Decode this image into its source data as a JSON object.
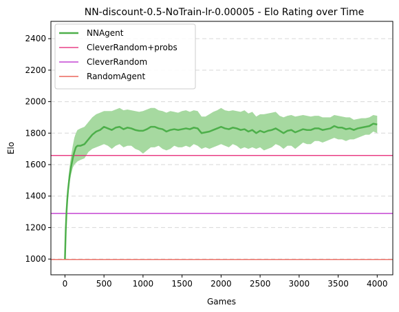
{
  "chart_data": {
    "type": "line",
    "title": "NN-discount-0.5-NoTrain-lr-0.00005 - Elo Rating over Time",
    "xlabel": "Games",
    "ylabel": "Elo",
    "xlim": [
      -180,
      4200
    ],
    "ylim": [
      900,
      2510
    ],
    "xticks": [
      0,
      500,
      1000,
      1500,
      2000,
      2500,
      3000,
      3500,
      4000
    ],
    "yticks": [
      1000,
      1200,
      1400,
      1600,
      1800,
      2000,
      2200,
      2400
    ],
    "grid": "y-dashed",
    "legend_position": "top-left",
    "series": [
      {
        "name": "NNAgent",
        "kind": "line-with-band",
        "color": "#4daf4a",
        "band_color": "#a6d9a0",
        "x": [
          0,
          10,
          20,
          30,
          40,
          60,
          80,
          100,
          120,
          140,
          160,
          200,
          250,
          300,
          350,
          400,
          450,
          500,
          550,
          600,
          650,
          700,
          750,
          800,
          850,
          900,
          950,
          1000,
          1050,
          1100,
          1150,
          1200,
          1250,
          1300,
          1350,
          1400,
          1450,
          1500,
          1550,
          1600,
          1650,
          1700,
          1750,
          1800,
          1850,
          1900,
          1950,
          2000,
          2050,
          2100,
          2150,
          2200,
          2250,
          2300,
          2350,
          2400,
          2450,
          2500,
          2550,
          2600,
          2650,
          2700,
          2750,
          2800,
          2850,
          2900,
          2950,
          3000,
          3050,
          3100,
          3150,
          3200,
          3250,
          3300,
          3350,
          3400,
          3450,
          3500,
          3550,
          3600,
          3650,
          3700,
          3750,
          3800,
          3850,
          3900,
          3950,
          4000
        ],
        "values": [
          1000,
          1180,
          1300,
          1380,
          1440,
          1530,
          1590,
          1640,
          1680,
          1710,
          1720,
          1720,
          1730,
          1760,
          1790,
          1810,
          1820,
          1840,
          1830,
          1820,
          1835,
          1840,
          1825,
          1835,
          1830,
          1820,
          1815,
          1815,
          1825,
          1840,
          1840,
          1830,
          1825,
          1810,
          1820,
          1825,
          1820,
          1825,
          1830,
          1825,
          1835,
          1830,
          1800,
          1805,
          1810,
          1820,
          1830,
          1840,
          1830,
          1825,
          1835,
          1830,
          1820,
          1825,
          1810,
          1820,
          1800,
          1815,
          1805,
          1815,
          1820,
          1830,
          1815,
          1800,
          1815,
          1820,
          1805,
          1815,
          1825,
          1820,
          1820,
          1830,
          1830,
          1820,
          1825,
          1830,
          1845,
          1835,
          1835,
          1825,
          1830,
          1820,
          1830,
          1835,
          1840,
          1845,
          1860,
          1855
        ],
        "lower": [
          1000,
          1170,
          1280,
          1360,
          1410,
          1490,
          1540,
          1580,
          1600,
          1610,
          1620,
          1630,
          1640,
          1680,
          1700,
          1710,
          1720,
          1730,
          1720,
          1700,
          1720,
          1730,
          1710,
          1720,
          1720,
          1700,
          1690,
          1670,
          1690,
          1710,
          1710,
          1720,
          1700,
          1690,
          1700,
          1720,
          1710,
          1710,
          1720,
          1710,
          1730,
          1720,
          1700,
          1710,
          1700,
          1710,
          1720,
          1730,
          1720,
          1710,
          1730,
          1720,
          1700,
          1710,
          1700,
          1710,
          1700,
          1710,
          1690,
          1700,
          1710,
          1730,
          1720,
          1700,
          1720,
          1720,
          1700,
          1720,
          1740,
          1730,
          1730,
          1750,
          1750,
          1740,
          1750,
          1760,
          1770,
          1760,
          1760,
          1750,
          1760,
          1760,
          1770,
          1780,
          1790,
          1790,
          1810,
          1800
        ],
        "upper": [
          1000,
          1200,
          1330,
          1420,
          1490,
          1590,
          1660,
          1720,
          1770,
          1800,
          1820,
          1830,
          1840,
          1870,
          1900,
          1920,
          1930,
          1940,
          1940,
          1940,
          1950,
          1960,
          1945,
          1950,
          1945,
          1940,
          1935,
          1940,
          1950,
          1960,
          1960,
          1945,
          1940,
          1930,
          1940,
          1935,
          1930,
          1940,
          1945,
          1935,
          1945,
          1940,
          1905,
          1905,
          1920,
          1935,
          1945,
          1960,
          1945,
          1940,
          1945,
          1940,
          1935,
          1945,
          1925,
          1935,
          1905,
          1920,
          1920,
          1925,
          1930,
          1935,
          1910,
          1900,
          1910,
          1915,
          1905,
          1910,
          1915,
          1910,
          1905,
          1910,
          1910,
          1900,
          1900,
          1900,
          1915,
          1910,
          1905,
          1900,
          1900,
          1885,
          1890,
          1895,
          1895,
          1900,
          1915,
          1910
        ]
      },
      {
        "name": "CleverRandom+probs",
        "kind": "hline",
        "y": 1658,
        "color": "#e41a6e"
      },
      {
        "name": "CleverRandom",
        "kind": "hline",
        "y": 1290,
        "color": "#b81ec9"
      },
      {
        "name": "RandomAgent",
        "kind": "hline",
        "y": 997,
        "color": "#e8473a"
      }
    ]
  }
}
